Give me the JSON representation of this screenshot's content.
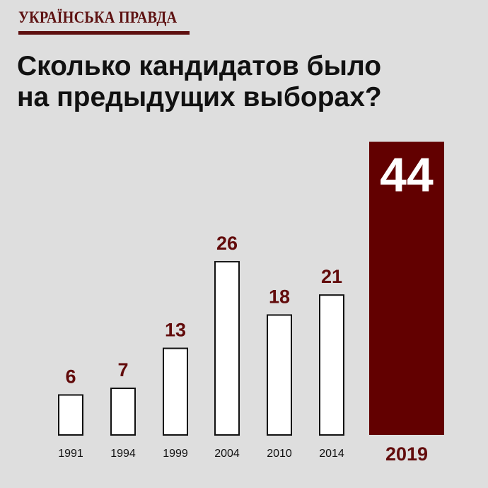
{
  "brand": {
    "name": "УКРАЇНСЬКА ПРАВДА",
    "accent_color": "#5e0f0f"
  },
  "title_line1": "Сколько кандидатов было",
  "title_line2": "на предыдущих выборах?",
  "chart_data": {
    "type": "bar",
    "title": "Сколько кандидатов было на предыдущих выборах?",
    "categories": [
      "1991",
      "1994",
      "1999",
      "2004",
      "2010",
      "2014",
      "2019"
    ],
    "values": [
      6,
      7,
      13,
      26,
      18,
      21,
      44
    ],
    "highlight": {
      "category": "2019",
      "value": 44
    },
    "colors": {
      "bar_fill": "#ffffff",
      "bar_stroke": "#111111",
      "highlight_fill": "#620000",
      "label_color": "#620b0b",
      "highlight_label_color": "#ffffff"
    },
    "xlabel": "",
    "ylabel": "",
    "grid": false,
    "legend": "none"
  }
}
